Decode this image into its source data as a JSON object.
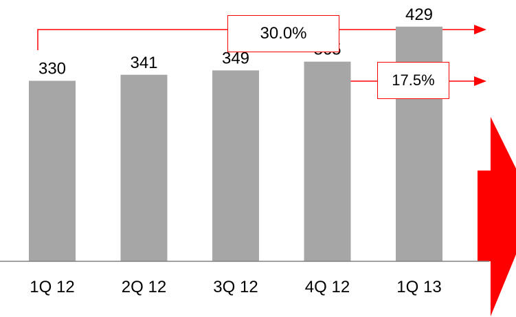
{
  "chart_data": {
    "type": "bar",
    "categories": [
      "1Q 12",
      "2Q 12",
      "3Q 12",
      "4Q 12",
      "1Q 13"
    ],
    "values": [
      330,
      341,
      349,
      365,
      429
    ],
    "ylim": [
      0,
      440
    ],
    "grid": false,
    "legend": "none",
    "colors": {
      "bar": "#a6a6a6",
      "accent": "#ff0000",
      "axis": "#808080"
    },
    "annotations": [
      {
        "label": "30.0%",
        "from": "1Q 12",
        "to": "1Q 13"
      },
      {
        "label": "17.5%",
        "from": "4Q 12",
        "to": "1Q 13"
      }
    ]
  }
}
